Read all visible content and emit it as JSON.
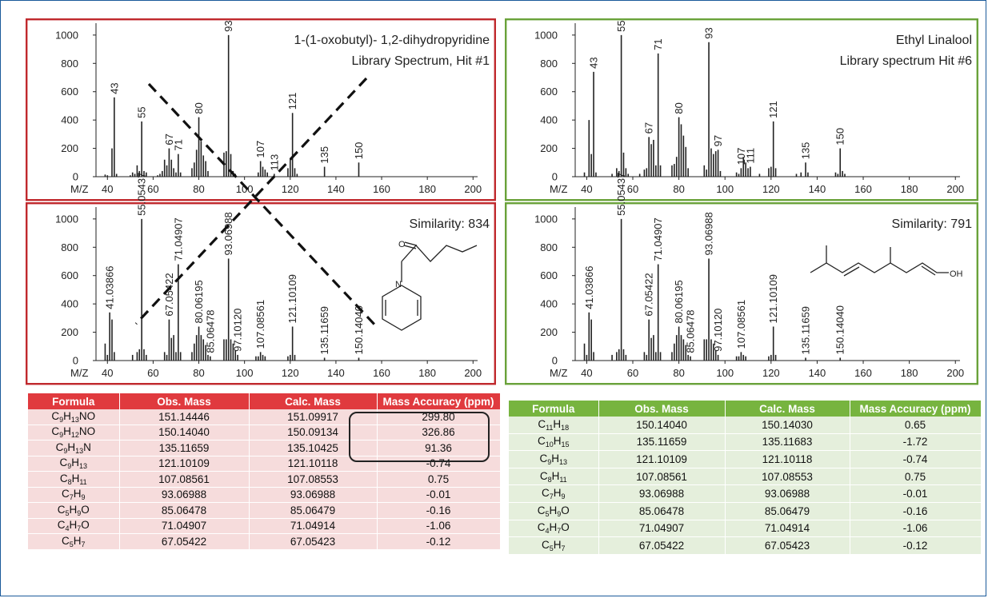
{
  "figure": {
    "panels": [
      {
        "id": "top-left",
        "border_color": "#c0292d",
        "title_lines": [
          "1-(1-oxobutyl)- 1,2-dihydropyridine",
          "Library Spectrum, Hit #1"
        ],
        "labels": [
          "43",
          "55",
          "67",
          "71",
          "80",
          "93",
          "107",
          "113",
          "121",
          "135",
          "150"
        ]
      },
      {
        "id": "top-right",
        "border_color": "#6aa23a",
        "title_lines": [
          "Ethyl Linalool",
          "Library spectrum Hit #6"
        ],
        "labels": [
          "43",
          "55",
          "67",
          "71",
          "80",
          "93",
          "97",
          "107",
          "111",
          "121",
          "135",
          "150"
        ]
      },
      {
        "id": "bottom-left",
        "border_color": "#c0292d",
        "title_lines": [
          "Similarity: 834"
        ],
        "labels": [
          "41.03866",
          "55.05437",
          "67.05422",
          "71.04907",
          "80.06195",
          "85.06478",
          "93.06988",
          "97.10120",
          "107.08561",
          "121.10109",
          "135.11659",
          "150.14040"
        ]
      },
      {
        "id": "bottom-right",
        "border_color": "#6aa23a",
        "title_lines": [
          "Similarity: 791"
        ],
        "labels": [
          "41.03866",
          "55.05437",
          "67.05422",
          "71.04907",
          "80.06195",
          "85.06478",
          "93.06988",
          "97.10120",
          "107.08561",
          "121.10109",
          "135.11659",
          "150.14040"
        ],
        "structure_label": "OH"
      }
    ],
    "axis": {
      "xlabel": "M/Z"
    }
  },
  "chart_data": [
    {
      "type": "bar",
      "title": "1-(1-oxobutyl)- 1,2-dihydropyridine Library Spectrum, Hit #1",
      "xlabel": "M/Z",
      "ylabel": "",
      "xlim": [
        35,
        202
      ],
      "ylim": [
        0,
        1050
      ],
      "xticks": [
        40,
        60,
        80,
        100,
        120,
        140,
        160,
        180,
        200
      ],
      "yticks": [
        0,
        200,
        400,
        600,
        800,
        1000
      ],
      "x": [
        39,
        40,
        42,
        43,
        44,
        50,
        51,
        52,
        53,
        54,
        55,
        56,
        57,
        62,
        63,
        64,
        65,
        66,
        67,
        68,
        69,
        70,
        71,
        72,
        77,
        78,
        79,
        80,
        81,
        82,
        83,
        84,
        91,
        92,
        93,
        94,
        95,
        96,
        106,
        107,
        108,
        109,
        110,
        113,
        119,
        120,
        121,
        122,
        123,
        135,
        150
      ],
      "y": [
        15,
        10,
        200,
        560,
        20,
        10,
        30,
        20,
        80,
        40,
        390,
        40,
        30,
        10,
        20,
        40,
        120,
        80,
        200,
        120,
        60,
        30,
        160,
        30,
        60,
        100,
        190,
        420,
        250,
        150,
        110,
        40,
        170,
        180,
        1000,
        160,
        40,
        20,
        30,
        110,
        70,
        50,
        30,
        20,
        60,
        130,
        450,
        60,
        20,
        70,
        100
      ]
    },
    {
      "type": "bar",
      "title": "Ethyl Linalool Library spectrum Hit #6",
      "xlabel": "M/Z",
      "ylabel": "",
      "xlim": [
        35,
        202
      ],
      "ylim": [
        0,
        1050
      ],
      "xticks": [
        40,
        60,
        80,
        100,
        120,
        140,
        160,
        180,
        200
      ],
      "yticks": [
        0,
        200,
        400,
        600,
        800,
        1000
      ],
      "x": [
        39,
        41,
        42,
        43,
        44,
        51,
        53,
        54,
        55,
        56,
        57,
        58,
        63,
        65,
        66,
        67,
        68,
        69,
        70,
        71,
        72,
        77,
        78,
        79,
        80,
        81,
        82,
        83,
        84,
        91,
        92,
        93,
        94,
        95,
        96,
        97,
        98,
        105,
        106,
        107,
        108,
        109,
        110,
        111,
        115,
        119,
        120,
        121,
        122,
        131,
        133,
        135,
        136,
        148,
        149,
        150,
        151,
        152
      ],
      "y": [
        30,
        400,
        160,
        740,
        30,
        20,
        60,
        40,
        1000,
        170,
        60,
        20,
        20,
        50,
        60,
        280,
        230,
        260,
        80,
        870,
        80,
        80,
        90,
        140,
        420,
        370,
        290,
        210,
        60,
        80,
        50,
        950,
        200,
        160,
        180,
        190,
        40,
        30,
        20,
        60,
        140,
        100,
        60,
        70,
        20,
        60,
        70,
        390,
        60,
        20,
        30,
        100,
        30,
        30,
        20,
        200,
        40,
        20
      ]
    },
    {
      "type": "bar",
      "title": "Similarity: 834",
      "xlabel": "M/Z",
      "ylabel": "",
      "xlim": [
        35,
        202
      ],
      "ylim": [
        0,
        1050
      ],
      "xticks": [
        40,
        60,
        80,
        100,
        120,
        140,
        160,
        180,
        200
      ],
      "yticks": [
        0,
        200,
        400,
        600,
        800,
        1000
      ],
      "x": [
        39,
        40,
        41,
        42,
        43,
        51,
        53,
        54,
        55,
        56,
        57,
        65,
        66,
        67,
        68,
        69,
        70,
        71,
        72,
        77,
        78,
        79,
        80,
        81,
        82,
        83,
        84,
        85,
        91,
        92,
        93,
        94,
        95,
        96,
        97,
        105,
        106,
        107,
        108,
        109,
        119,
        120,
        121,
        122,
        135,
        150
      ],
      "y": [
        120,
        40,
        340,
        290,
        60,
        40,
        60,
        80,
        1000,
        80,
        40,
        60,
        40,
        290,
        160,
        180,
        60,
        680,
        60,
        60,
        120,
        180,
        240,
        180,
        150,
        110,
        40,
        30,
        150,
        150,
        720,
        150,
        120,
        70,
        40,
        30,
        30,
        60,
        40,
        30,
        30,
        40,
        240,
        40,
        20,
        20
      ]
    },
    {
      "type": "bar",
      "title": "Similarity: 791",
      "xlabel": "M/Z",
      "ylabel": "",
      "xlim": [
        35,
        202
      ],
      "ylim": [
        0,
        1050
      ],
      "xticks": [
        40,
        60,
        80,
        100,
        120,
        140,
        160,
        180,
        200
      ],
      "yticks": [
        0,
        200,
        400,
        600,
        800,
        1000
      ],
      "x": [
        39,
        40,
        41,
        42,
        43,
        51,
        53,
        54,
        55,
        56,
        57,
        65,
        66,
        67,
        68,
        69,
        70,
        71,
        72,
        77,
        78,
        79,
        80,
        81,
        82,
        83,
        84,
        85,
        91,
        92,
        93,
        94,
        95,
        96,
        97,
        105,
        106,
        107,
        108,
        109,
        119,
        120,
        121,
        122,
        135,
        150
      ],
      "y": [
        120,
        40,
        340,
        290,
        60,
        40,
        60,
        80,
        1000,
        80,
        40,
        60,
        40,
        290,
        160,
        180,
        60,
        680,
        60,
        60,
        120,
        180,
        240,
        180,
        150,
        110,
        40,
        30,
        150,
        150,
        720,
        150,
        120,
        70,
        40,
        30,
        30,
        60,
        40,
        30,
        30,
        40,
        240,
        40,
        20,
        20
      ]
    },
    {
      "type": "table",
      "title": "",
      "columns": [
        "Formula",
        "Obs. Mass",
        "Calc. Mass",
        "Mass Accuracy (ppm)"
      ],
      "rows": [
        [
          "C9H13NO",
          "151.14446",
          "151.09917",
          "299.80"
        ],
        [
          "C9H12NO",
          "150.14040",
          "150.09134",
          "326.86"
        ],
        [
          "C9H13N",
          "135.11659",
          "135.10425",
          "91.36"
        ],
        [
          "C9H13",
          "121.10109",
          "121.10118",
          "-0.74"
        ],
        [
          "C8H11",
          "107.08561",
          "107.08553",
          "0.75"
        ],
        [
          "C7H9",
          "93.06988",
          "93.06988",
          "-0.01"
        ],
        [
          "C5H9O",
          "85.06478",
          "85.06479",
          "-0.16"
        ],
        [
          "C4H7O",
          "71.04907",
          "71.04914",
          "-1.06"
        ],
        [
          "C5H7",
          "67.05422",
          "67.05423",
          "-0.12"
        ]
      ]
    },
    {
      "type": "table",
      "title": "",
      "columns": [
        "Formula",
        "Obs. Mass",
        "Calc. Mass",
        "Mass Accuracy (ppm)"
      ],
      "rows": [
        [
          "C11H18",
          "150.14040",
          "150.14030",
          "0.65"
        ],
        [
          "C10H15",
          "135.11659",
          "135.11683",
          "-1.72"
        ],
        [
          "C9H13",
          "121.10109",
          "121.10118",
          "-0.74"
        ],
        [
          "C8H11",
          "107.08561",
          "107.08553",
          "0.75"
        ],
        [
          "C7H9",
          "93.06988",
          "93.06988",
          "-0.01"
        ],
        [
          "C5H9O",
          "85.06478",
          "85.06479",
          "-0.16"
        ],
        [
          "C4H7O",
          "71.04907",
          "71.04914",
          "-1.06"
        ],
        [
          "C5H7",
          "67.05422",
          "67.05423",
          "-0.12"
        ]
      ]
    }
  ],
  "tables": {
    "left": {
      "header_color": "#e03a3e",
      "row_color": "#f6dcdc",
      "headers": [
        "Formula",
        "Obs. Mass",
        "Calc. Mass",
        "Mass Accuracy (ppm)"
      ],
      "rows": [
        {
          "formula": [
            [
              "C",
              ""
            ],
            [
              "H",
              ""
            ],
            [
              "NO",
              ""
            ]
          ],
          "f": [
            "C",
            "9",
            "H",
            "13",
            "NO"
          ],
          "obs": "151.14446",
          "calc": "151.09917",
          "ppm": "299.80"
        },
        {
          "f": [
            "C",
            "9",
            "H",
            "12",
            "NO"
          ],
          "obs": "150.14040",
          "calc": "150.09134",
          "ppm": "326.86"
        },
        {
          "f": [
            "C",
            "9",
            "H",
            "13",
            "N"
          ],
          "obs": "135.11659",
          "calc": "135.10425",
          "ppm": "91.36"
        },
        {
          "f": [
            "C",
            "9",
            "H",
            "13",
            ""
          ],
          "obs": "121.10109",
          "calc": "121.10118",
          "ppm": "-0.74"
        },
        {
          "f": [
            "C",
            "8",
            "H",
            "11",
            ""
          ],
          "obs": "107.08561",
          "calc": "107.08553",
          "ppm": "0.75"
        },
        {
          "f": [
            "C",
            "7",
            "H",
            "9",
            ""
          ],
          "obs": "93.06988",
          "calc": "93.06988",
          "ppm": "-0.01"
        },
        {
          "f": [
            "C",
            "5",
            "H",
            "9",
            "O"
          ],
          "obs": "85.06478",
          "calc": "85.06479",
          "ppm": "-0.16"
        },
        {
          "f": [
            "C",
            "4",
            "H",
            "7",
            "O"
          ],
          "obs": "71.04907",
          "calc": "71.04914",
          "ppm": "-1.06"
        },
        {
          "f": [
            "C",
            "5",
            "H",
            "7",
            ""
          ],
          "obs": "67.05422",
          "calc": "67.05423",
          "ppm": "-0.12"
        }
      ]
    },
    "right": {
      "header_color": "#77b43f",
      "row_color": "#e5efdc",
      "headers": [
        "Formula",
        "Obs. Mass",
        "Calc. Mass",
        "Mass Accuracy (ppm)"
      ],
      "rows": [
        {
          "f": [
            "C",
            "11",
            "H",
            "18",
            ""
          ],
          "obs": "150.14040",
          "calc": "150.14030",
          "ppm": "0.65"
        },
        {
          "f": [
            "C",
            "10",
            "H",
            "15",
            ""
          ],
          "obs": "135.11659",
          "calc": "135.11683",
          "ppm": "-1.72"
        },
        {
          "f": [
            "C",
            "9",
            "H",
            "13",
            ""
          ],
          "obs": "121.10109",
          "calc": "121.10118",
          "ppm": "-0.74"
        },
        {
          "f": [
            "C",
            "8",
            "H",
            "11",
            ""
          ],
          "obs": "107.08561",
          "calc": "107.08553",
          "ppm": "0.75"
        },
        {
          "f": [
            "C",
            "7",
            "H",
            "9",
            ""
          ],
          "obs": "93.06988",
          "calc": "93.06988",
          "ppm": "-0.01"
        },
        {
          "f": [
            "C",
            "5",
            "H",
            "9",
            "O"
          ],
          "obs": "85.06478",
          "calc": "85.06479",
          "ppm": "-0.16"
        },
        {
          "f": [
            "C",
            "4",
            "H",
            "7",
            "O"
          ],
          "obs": "71.04907",
          "calc": "71.04914",
          "ppm": "-1.06"
        },
        {
          "f": [
            "C",
            "5",
            "H",
            "7",
            ""
          ],
          "obs": "67.05422",
          "calc": "67.05423",
          "ppm": "-0.12"
        }
      ]
    }
  },
  "colors": {
    "bar": "#222222",
    "red_border": "#c0292d",
    "green_border": "#6aa23a",
    "outer_border": "#1a5a9a"
  }
}
